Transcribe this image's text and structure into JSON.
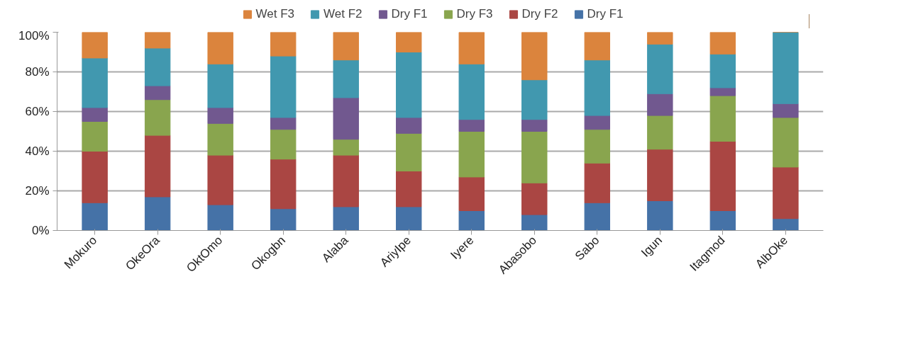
{
  "chart_data": {
    "type": "bar",
    "stacked": true,
    "categories": [
      "Mokuro",
      "OkeOra",
      "OktOmo",
      "Okogbn",
      "Alaba",
      "AriyIpe",
      "Iyere",
      "Abasobo",
      "Sabo",
      "Igun",
      "Itagmod",
      "AlbOke"
    ],
    "series": [
      {
        "name": "Dry F1",
        "color": "#4572a7",
        "values": [
          14,
          17,
          13,
          11,
          12,
          12,
          10,
          8,
          14,
          15,
          10,
          6
        ]
      },
      {
        "name": "Dry F2",
        "color": "#aa4643",
        "values": [
          26,
          31,
          25,
          25,
          26,
          18,
          17,
          16,
          20,
          26,
          35,
          26
        ]
      },
      {
        "name": "Dry F3",
        "color": "#89a54e",
        "values": [
          15,
          18,
          16,
          15,
          8,
          19,
          23,
          26,
          17,
          17,
          23,
          25
        ]
      },
      {
        "name": "Dry F1",
        "color": "#71588f",
        "values": [
          7,
          7,
          8,
          6,
          21,
          8,
          6,
          6,
          7,
          11,
          4,
          7
        ]
      },
      {
        "name": "Wet F2",
        "color": "#4198af",
        "values": [
          25,
          19,
          22,
          31,
          19,
          33,
          28,
          20,
          28,
          25,
          17,
          36
        ]
      },
      {
        "name": "Wet F3",
        "color": "#db843d",
        "values": [
          13,
          8,
          16,
          12,
          14,
          10,
          16,
          24,
          14,
          6,
          11,
          0
        ]
      }
    ],
    "ylim": [
      0,
      100
    ],
    "yticks": [
      {
        "value": 0,
        "label": "0%"
      },
      {
        "value": 20,
        "label": "20%"
      },
      {
        "value": 40,
        "label": "40%"
      },
      {
        "value": 60,
        "label": "60%"
      },
      {
        "value": 80,
        "label": "80%"
      },
      {
        "value": 100,
        "label": "100%"
      }
    ],
    "grid": "y",
    "legend": "top"
  }
}
